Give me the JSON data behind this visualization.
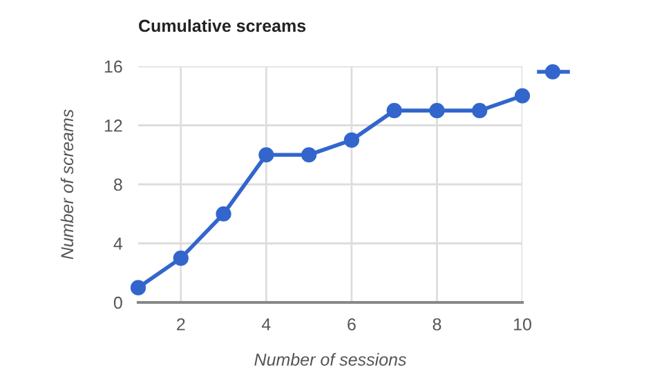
{
  "chart_data": {
    "type": "line",
    "title": "Cumulative screams",
    "xlabel": "Number of sessions",
    "ylabel": "Number of screams",
    "x": [
      1,
      2,
      3,
      4,
      5,
      6,
      7,
      8,
      9,
      10
    ],
    "series": [
      {
        "color": "#3366cc",
        "values": [
          1,
          3,
          6,
          10,
          10,
          11,
          13,
          13,
          13,
          14
        ]
      }
    ],
    "xlim": [
      1,
      10
    ],
    "xticks": [
      2,
      4,
      6,
      8,
      10
    ],
    "ylim": [
      0,
      16
    ],
    "yticks": [
      0,
      4,
      8,
      12,
      16
    ],
    "grid": true,
    "marker": "circle",
    "line_style": "solid"
  }
}
